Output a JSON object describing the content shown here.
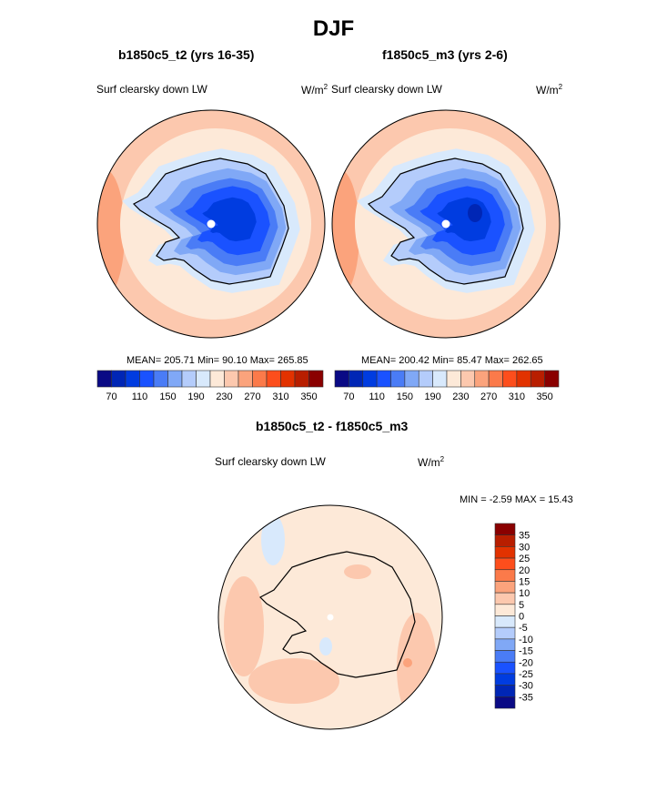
{
  "title": "DJF",
  "palette": [
    "#0a0a85",
    "#0026b5",
    "#003ce0",
    "#1a52ff",
    "#4a7cf6",
    "#80a8f6",
    "#b4ccfb",
    "#d8e9fc",
    "#fde9d8",
    "#fcc8ae",
    "#fba37c",
    "#fb7a4a",
    "#fd4e1c",
    "#e23200",
    "#b81e00",
    "#8a0000"
  ],
  "panels": [
    {
      "title": "b1850c5_t2 (yrs 16-35)",
      "field": "Surf clearsky down LW",
      "units": "W/m",
      "units_sup": "2",
      "mean_label": "MEAN= 205.71  Min=  90.10  Max= 265.85"
    },
    {
      "title": "f1850c5_m3 (yrs 2-6)",
      "field": "Surf clearsky down LW",
      "units": "W/m",
      "units_sup": "2",
      "mean_label": "MEAN= 200.42  Min=  85.47  Max= 262.65"
    }
  ],
  "colorbar_labels": [
    "70",
    "110",
    "150",
    "190",
    "230",
    "270",
    "310",
    "350"
  ],
  "diff": {
    "title": "b1850c5_t2 - f1850c5_m3",
    "field": "Surf clearsky down LW",
    "units": "W/m",
    "units_sup": "2",
    "minmax_label": "MIN =  -2.59 MAX =  15.43",
    "colorbar_labels": [
      "35",
      "30",
      "25",
      "20",
      "15",
      "10",
      "5",
      "0",
      "-5",
      "-10",
      "-15",
      "-20",
      "-25",
      "-30",
      "-35"
    ]
  }
}
